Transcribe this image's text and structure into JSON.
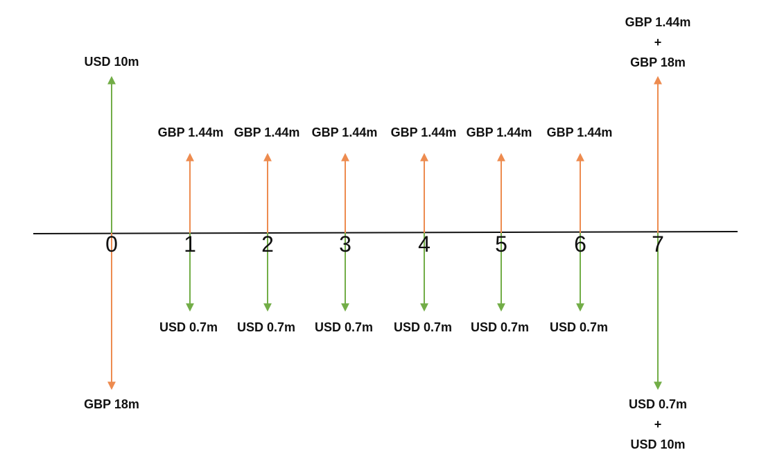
{
  "colors": {
    "gbp_arrow": "#ED8B4F",
    "usd_arrow": "#72AD47",
    "axis": "#111111"
  },
  "periods": [
    "0",
    "1",
    "2",
    "3",
    "4",
    "5",
    "6",
    "7"
  ],
  "flows": [
    {
      "period": "0",
      "up": {
        "currency": "USD",
        "lines": [
          "USD 10m"
        ]
      },
      "down": {
        "currency": "GBP",
        "lines": [
          "GBP 18m"
        ]
      }
    },
    {
      "period": "1",
      "up": {
        "currency": "GBP",
        "lines": [
          "GBP 1.44m"
        ]
      },
      "down": {
        "currency": "USD",
        "lines": [
          "USD 0.7m"
        ]
      }
    },
    {
      "period": "2",
      "up": {
        "currency": "GBP",
        "lines": [
          "GBP 1.44m"
        ]
      },
      "down": {
        "currency": "USD",
        "lines": [
          "USD 0.7m"
        ]
      }
    },
    {
      "period": "3",
      "up": {
        "currency": "GBP",
        "lines": [
          "GBP 1.44m"
        ]
      },
      "down": {
        "currency": "USD",
        "lines": [
          "USD 0.7m"
        ]
      }
    },
    {
      "period": "4",
      "up": {
        "currency": "GBP",
        "lines": [
          "GBP 1.44m"
        ]
      },
      "down": {
        "currency": "USD",
        "lines": [
          "USD 0.7m"
        ]
      }
    },
    {
      "period": "5",
      "up": {
        "currency": "GBP",
        "lines": [
          "GBP 1.44m"
        ]
      },
      "down": {
        "currency": "USD",
        "lines": [
          "USD 0.7m"
        ]
      }
    },
    {
      "period": "6",
      "up": {
        "currency": "GBP",
        "lines": [
          "GBP 1.44m"
        ]
      },
      "down": {
        "currency": "USD",
        "lines": [
          "USD 0.7m"
        ]
      }
    },
    {
      "period": "7",
      "up": {
        "currency": "GBP",
        "lines": [
          "GBP 1.44m",
          "+",
          "GBP 18m"
        ]
      },
      "down": {
        "currency": "USD",
        "lines": [
          "USD 0.7m",
          "+",
          "USD 10m"
        ]
      }
    }
  ]
}
